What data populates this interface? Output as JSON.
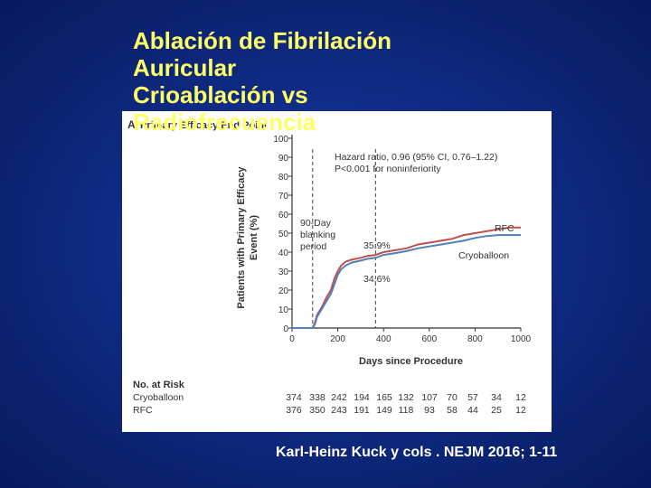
{
  "slide": {
    "title_lines": [
      "Ablación de Fibrilación",
      "Auricular",
      "Crioablación vs",
      "Radiofrecuencia"
    ],
    "citation": "Karl-Heinz Kuck y cols . NEJM  2016; 1-11",
    "colors": {
      "background": "#0f2b85",
      "title": "#ffff66",
      "citation": "#ffffff"
    }
  },
  "chart_data": {
    "type": "line",
    "panel_label": "A",
    "title": "Primary Efficacy End Point",
    "xlabel": "Days since Procedure",
    "ylabel": [
      "Patients with Primary Efficacy",
      "Event (%)"
    ],
    "xlim": [
      0,
      1000
    ],
    "ylim": [
      0,
      100
    ],
    "x_ticks": [
      0,
      200,
      400,
      600,
      800,
      1000
    ],
    "y_ticks": [
      0,
      10,
      20,
      30,
      40,
      50,
      60,
      70,
      80,
      90,
      100
    ],
    "annotations": {
      "hazard_ratio": "Hazard ratio, 0.96 (95% CI, 0.76–1.22)",
      "p_value": "P<0.001 for noninferiority",
      "blanking": [
        "90-Day",
        "blanking",
        "period"
      ],
      "rfc_pct": "35.9%",
      "cryo_pct": "34.6%"
    },
    "reference_lines_x": [
      90,
      365
    ],
    "series": [
      {
        "name": "RFC",
        "color": "#c0504d",
        "points": [
          [
            0,
            0
          ],
          [
            90,
            0
          ],
          [
            100,
            3
          ],
          [
            110,
            7
          ],
          [
            130,
            11
          ],
          [
            150,
            16
          ],
          [
            170,
            20
          ],
          [
            185,
            26
          ],
          [
            200,
            30
          ],
          [
            215,
            33
          ],
          [
            235,
            35
          ],
          [
            260,
            36
          ],
          [
            300,
            37
          ],
          [
            330,
            38
          ],
          [
            365,
            38.5
          ],
          [
            400,
            40
          ],
          [
            450,
            41
          ],
          [
            500,
            42
          ],
          [
            550,
            44
          ],
          [
            600,
            45
          ],
          [
            650,
            46
          ],
          [
            700,
            47
          ],
          [
            750,
            49
          ],
          [
            800,
            50
          ],
          [
            850,
            51
          ],
          [
            900,
            52
          ],
          [
            950,
            53
          ],
          [
            1000,
            53
          ]
        ]
      },
      {
        "name": "Cryoballoon",
        "color": "#4f81bd",
        "points": [
          [
            0,
            0
          ],
          [
            90,
            0
          ],
          [
            100,
            2
          ],
          [
            110,
            6
          ],
          [
            130,
            10
          ],
          [
            150,
            14
          ],
          [
            170,
            18
          ],
          [
            185,
            23
          ],
          [
            200,
            28
          ],
          [
            215,
            31
          ],
          [
            235,
            33
          ],
          [
            260,
            34.5
          ],
          [
            300,
            35.5
          ],
          [
            330,
            36.5
          ],
          [
            365,
            37
          ],
          [
            400,
            38.5
          ],
          [
            450,
            39.5
          ],
          [
            500,
            40.5
          ],
          [
            550,
            42
          ],
          [
            600,
            43
          ],
          [
            650,
            44
          ],
          [
            700,
            45
          ],
          [
            750,
            46
          ],
          [
            800,
            47.5
          ],
          [
            850,
            48.5
          ],
          [
            900,
            49
          ],
          [
            950,
            49
          ],
          [
            1000,
            49
          ]
        ]
      }
    ],
    "no_at_risk": {
      "header": "No. at Risk",
      "rows": [
        {
          "name": "Cryoballoon",
          "values": [
            374,
            338,
            242,
            194,
            165,
            132,
            107,
            70,
            57,
            34,
            12
          ]
        },
        {
          "name": "RFC",
          "values": [
            376,
            350,
            243,
            191,
            149,
            118,
            93,
            58,
            44,
            25,
            12
          ]
        }
      ]
    },
    "grid": false,
    "legend": "inline-labels"
  }
}
